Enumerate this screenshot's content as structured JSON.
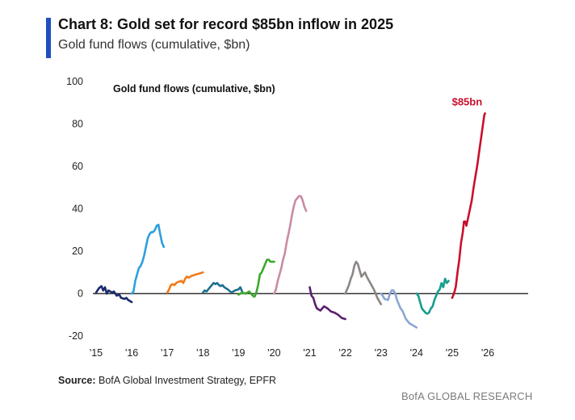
{
  "header": {
    "title": "Chart 8: Gold set for record $85bn inflow in 2025",
    "subtitle": "Gold fund flows (cumulative, $bn)",
    "accent_color": "#1f4fbf"
  },
  "footer": {
    "source_label": "Source:",
    "source_text": " BofA Global Investment Strategy, EPFR",
    "brand": "BofA GLOBAL RESEARCH"
  },
  "chart_data": {
    "type": "line",
    "title": "Gold fund flows (cumulative, $bn)",
    "xlabel": "",
    "ylabel": "",
    "xlim": [
      2015,
      2026.2
    ],
    "ylim": [
      -20,
      100
    ],
    "y_ticks": [
      100,
      80,
      60,
      40,
      20,
      0,
      -20
    ],
    "x_ticks": [
      {
        "value": 2015,
        "label": "'15"
      },
      {
        "value": 2016,
        "label": "'16"
      },
      {
        "value": 2017,
        "label": "'17"
      },
      {
        "value": 2018,
        "label": "'18"
      },
      {
        "value": 2019,
        "label": "'19"
      },
      {
        "value": 2020,
        "label": "'20"
      },
      {
        "value": 2021,
        "label": "'21"
      },
      {
        "value": 2022,
        "label": "'22"
      },
      {
        "value": 2023,
        "label": "'23"
      },
      {
        "value": 2024,
        "label": "'24"
      },
      {
        "value": 2025,
        "label": "'25"
      },
      {
        "value": 2026,
        "label": "'26"
      }
    ],
    "grid": false,
    "legend": "none",
    "annotations": [
      {
        "text": "$85bn",
        "x": 2025.85,
        "y": 85,
        "color": "#c8102e"
      }
    ],
    "series": [
      {
        "color": "#1b2a6b",
        "points": [
          [
            2015.0,
            0.5
          ],
          [
            2015.08,
            2.5
          ],
          [
            2015.15,
            3.5
          ],
          [
            2015.2,
            1.5
          ],
          [
            2015.25,
            3
          ],
          [
            2015.3,
            0
          ],
          [
            2015.35,
            1.5
          ],
          [
            2015.45,
            0.5
          ],
          [
            2015.5,
            1
          ],
          [
            2015.58,
            -1
          ],
          [
            2015.65,
            -0.5
          ],
          [
            2015.7,
            -2
          ],
          [
            2015.8,
            -2.5
          ],
          [
            2015.85,
            -2
          ],
          [
            2015.9,
            -3
          ],
          [
            2016.0,
            -4
          ]
        ]
      },
      {
        "color": "#2d9fe0",
        "points": [
          [
            2016.0,
            0
          ],
          [
            2016.05,
            1
          ],
          [
            2016.1,
            6
          ],
          [
            2016.15,
            9
          ],
          [
            2016.2,
            12
          ],
          [
            2016.25,
            13
          ],
          [
            2016.3,
            15
          ],
          [
            2016.35,
            18
          ],
          [
            2016.4,
            22
          ],
          [
            2016.45,
            26
          ],
          [
            2016.5,
            28
          ],
          [
            2016.55,
            29
          ],
          [
            2016.6,
            29
          ],
          [
            2016.65,
            30
          ],
          [
            2016.7,
            32
          ],
          [
            2016.75,
            32.5
          ],
          [
            2016.8,
            28
          ],
          [
            2016.85,
            24
          ],
          [
            2016.9,
            22
          ]
        ]
      },
      {
        "color": "#f07a1a",
        "points": [
          [
            2017.0,
            0.5
          ],
          [
            2017.05,
            2
          ],
          [
            2017.1,
            4
          ],
          [
            2017.15,
            4.5
          ],
          [
            2017.2,
            4
          ],
          [
            2017.25,
            5
          ],
          [
            2017.3,
            5.5
          ],
          [
            2017.4,
            6
          ],
          [
            2017.45,
            5
          ],
          [
            2017.5,
            7
          ],
          [
            2017.55,
            8
          ],
          [
            2017.6,
            7.5
          ],
          [
            2017.7,
            8.5
          ],
          [
            2017.8,
            9
          ],
          [
            2017.9,
            9.5
          ],
          [
            2018.0,
            10
          ]
        ]
      },
      {
        "color": "#1e6f8e",
        "points": [
          [
            2018.0,
            0.5
          ],
          [
            2018.05,
            1.5
          ],
          [
            2018.1,
            1
          ],
          [
            2018.2,
            3
          ],
          [
            2018.3,
            5
          ],
          [
            2018.35,
            4.5
          ],
          [
            2018.4,
            5
          ],
          [
            2018.45,
            4
          ],
          [
            2018.5,
            3.5
          ],
          [
            2018.55,
            4
          ],
          [
            2018.6,
            3
          ],
          [
            2018.7,
            2
          ],
          [
            2018.8,
            0.5
          ],
          [
            2018.9,
            1.5
          ],
          [
            2019.0,
            2
          ],
          [
            2019.05,
            3
          ],
          [
            2019.1,
            1
          ]
        ]
      },
      {
        "color": "#3aa82a",
        "points": [
          [
            2019.0,
            -0.5
          ],
          [
            2019.1,
            0.5
          ],
          [
            2019.2,
            0
          ],
          [
            2019.3,
            1
          ],
          [
            2019.35,
            0
          ],
          [
            2019.4,
            -1
          ],
          [
            2019.45,
            -1.5
          ],
          [
            2019.5,
            0.5
          ],
          [
            2019.55,
            4
          ],
          [
            2019.6,
            9
          ],
          [
            2019.65,
            10
          ],
          [
            2019.7,
            12
          ],
          [
            2019.75,
            14
          ],
          [
            2019.8,
            16
          ],
          [
            2019.85,
            16
          ],
          [
            2019.9,
            15
          ],
          [
            2019.95,
            15
          ],
          [
            2020.0,
            15
          ]
        ]
      },
      {
        "color": "#c98ba6",
        "points": [
          [
            2020.0,
            0
          ],
          [
            2020.05,
            2
          ],
          [
            2020.1,
            6
          ],
          [
            2020.15,
            9
          ],
          [
            2020.2,
            12
          ],
          [
            2020.25,
            16
          ],
          [
            2020.3,
            19
          ],
          [
            2020.35,
            24
          ],
          [
            2020.4,
            28
          ],
          [
            2020.45,
            32
          ],
          [
            2020.5,
            37
          ],
          [
            2020.55,
            41
          ],
          [
            2020.6,
            44
          ],
          [
            2020.65,
            45
          ],
          [
            2020.7,
            46
          ],
          [
            2020.75,
            46
          ],
          [
            2020.8,
            44
          ],
          [
            2020.85,
            41
          ],
          [
            2020.9,
            39
          ]
        ]
      },
      {
        "color": "#5a1f6e",
        "points": [
          [
            2021.0,
            3
          ],
          [
            2021.05,
            -1
          ],
          [
            2021.1,
            -2
          ],
          [
            2021.15,
            -5
          ],
          [
            2021.2,
            -7
          ],
          [
            2021.25,
            -7.5
          ],
          [
            2021.3,
            -8
          ],
          [
            2021.35,
            -7
          ],
          [
            2021.4,
            -6
          ],
          [
            2021.5,
            -7
          ],
          [
            2021.6,
            -8.5
          ],
          [
            2021.7,
            -9
          ],
          [
            2021.8,
            -10
          ],
          [
            2021.9,
            -11.5
          ],
          [
            2022.0,
            -12
          ]
        ]
      },
      {
        "color": "#8c8785",
        "points": [
          [
            2022.0,
            0
          ],
          [
            2022.05,
            2
          ],
          [
            2022.1,
            4
          ],
          [
            2022.15,
            7
          ],
          [
            2022.2,
            9
          ],
          [
            2022.25,
            13
          ],
          [
            2022.3,
            15
          ],
          [
            2022.35,
            14
          ],
          [
            2022.4,
            11
          ],
          [
            2022.45,
            8
          ],
          [
            2022.5,
            9
          ],
          [
            2022.55,
            10
          ],
          [
            2022.6,
            8
          ],
          [
            2022.7,
            5
          ],
          [
            2022.8,
            2
          ],
          [
            2022.9,
            -2
          ],
          [
            2023.0,
            -5
          ]
        ]
      },
      {
        "color": "#8aa6d6",
        "points": [
          [
            2023.0,
            0
          ],
          [
            2023.05,
            -1
          ],
          [
            2023.1,
            -2.5
          ],
          [
            2023.2,
            -3
          ],
          [
            2023.25,
            0
          ],
          [
            2023.3,
            1.5
          ],
          [
            2023.35,
            1.5
          ],
          [
            2023.4,
            0
          ],
          [
            2023.45,
            -3
          ],
          [
            2023.5,
            -5
          ],
          [
            2023.55,
            -7
          ],
          [
            2023.6,
            -8
          ],
          [
            2023.65,
            -10
          ],
          [
            2023.7,
            -12
          ],
          [
            2023.75,
            -13
          ],
          [
            2023.8,
            -14
          ],
          [
            2023.9,
            -15
          ],
          [
            2024.0,
            -16
          ]
        ]
      },
      {
        "color": "#159e8e",
        "points": [
          [
            2024.0,
            0
          ],
          [
            2024.05,
            -1
          ],
          [
            2024.1,
            -4
          ],
          [
            2024.15,
            -7
          ],
          [
            2024.2,
            -8
          ],
          [
            2024.25,
            -9
          ],
          [
            2024.3,
            -9.5
          ],
          [
            2024.35,
            -9
          ],
          [
            2024.4,
            -7
          ],
          [
            2024.45,
            -6
          ],
          [
            2024.5,
            -3
          ],
          [
            2024.55,
            -1
          ],
          [
            2024.6,
            1
          ],
          [
            2024.65,
            2
          ],
          [
            2024.7,
            5
          ],
          [
            2024.75,
            3
          ],
          [
            2024.8,
            7
          ],
          [
            2024.85,
            5
          ],
          [
            2024.9,
            6
          ]
        ]
      },
      {
        "color": "#c8102e",
        "points": [
          [
            2025.0,
            -2
          ],
          [
            2025.05,
            0
          ],
          [
            2025.1,
            3
          ],
          [
            2025.15,
            10
          ],
          [
            2025.2,
            16
          ],
          [
            2025.25,
            24
          ],
          [
            2025.3,
            29
          ],
          [
            2025.33,
            34
          ],
          [
            2025.37,
            34
          ],
          [
            2025.4,
            32
          ],
          [
            2025.45,
            36
          ],
          [
            2025.5,
            40
          ],
          [
            2025.55,
            44
          ],
          [
            2025.6,
            50
          ],
          [
            2025.65,
            55
          ],
          [
            2025.7,
            60
          ],
          [
            2025.75,
            66
          ],
          [
            2025.8,
            72
          ],
          [
            2025.85,
            78
          ],
          [
            2025.9,
            84
          ],
          [
            2025.92,
            85
          ]
        ]
      }
    ]
  }
}
